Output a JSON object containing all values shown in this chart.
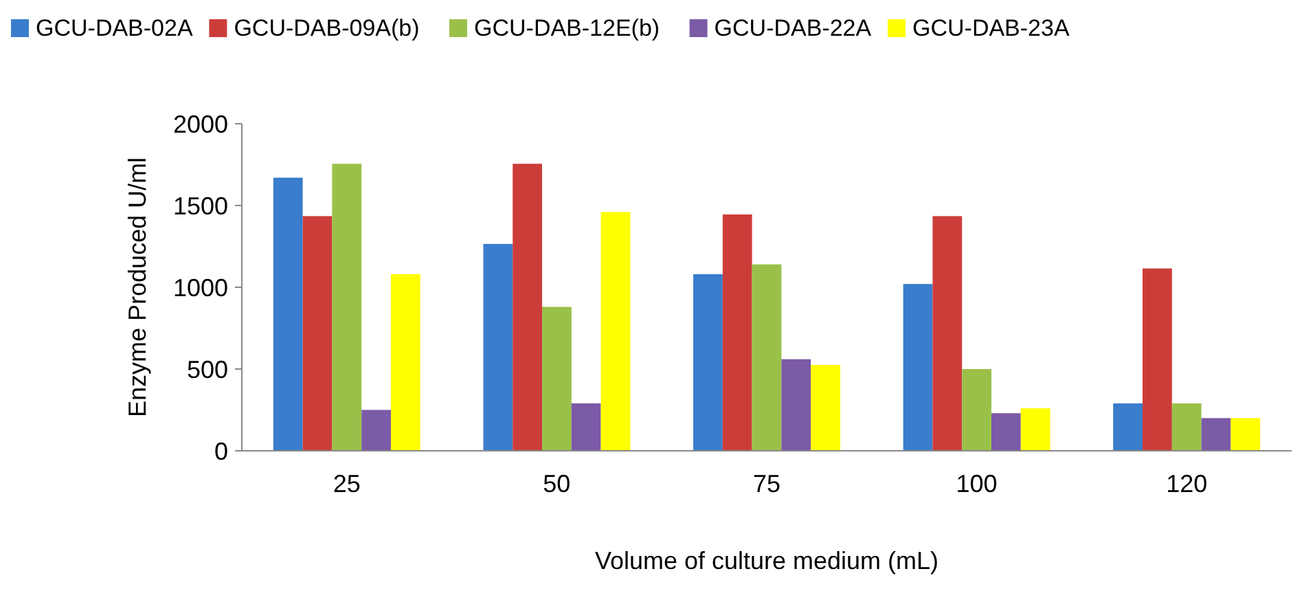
{
  "chart_data": {
    "type": "bar",
    "xlabel": "Volume of culture medium (mL)",
    "ylabel": "Enzyme Produced U/ml",
    "categories": [
      "25",
      "50",
      "75",
      "100",
      "120"
    ],
    "series": [
      {
        "name": "GCU-DAB-02A",
        "color": "#3a7dcc",
        "values": [
          1670,
          1265,
          1080,
          1020,
          290
        ]
      },
      {
        "name": "GCU-DAB-09A(b)",
        "color": "#cc3d3a",
        "values": [
          1435,
          1755,
          1445,
          1435,
          1115
        ]
      },
      {
        "name": "GCU-DAB-12E(b)",
        "color": "#9bc04a",
        "values": [
          1755,
          880,
          1140,
          500,
          290
        ]
      },
      {
        "name": "GCU-DAB-22A",
        "color": "#7b5aa6",
        "values": [
          250,
          290,
          560,
          230,
          200
        ]
      },
      {
        "name": "GCU-DAB-23A",
        "color": "#ffff00",
        "values": [
          1080,
          1460,
          525,
          260,
          200
        ]
      }
    ],
    "ylim": [
      0,
      2000
    ],
    "yticks": [
      0,
      500,
      1000,
      1500,
      2000
    ],
    "grid": false,
    "legend": "top"
  }
}
